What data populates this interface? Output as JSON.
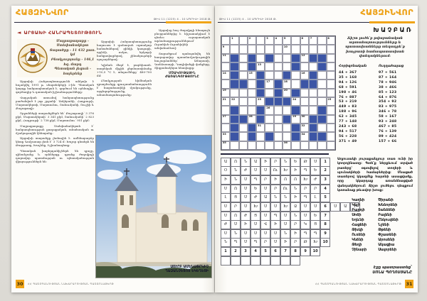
{
  "newspaper": {
    "logo": "ՀԱՅԶԻՆՎՈՐ",
    "issue_line": "ԹԻՎ 11 (1225)  4 - 10 ԱՊՐԻԼԻ 2018 Թ.",
    "footer_text": "ՀՀ ՊԱՇՏՊԱՆՈՒԹՅԱՆ ՆԱԽԱՐԱՐՈՒԹՅԱՆ ՊԱՇՏՈՆԱԹԵՐԹ",
    "page_left_number": "30",
    "page_right_number": "31"
  },
  "colors": {
    "accent_orange": "#f0a417",
    "title_red": "#9e2b25",
    "crossword_blue": "#3c55a5",
    "rule_dark": "#23233a"
  },
  "article": {
    "title": "ԱՐՑԱԽԻ ՀԱՆՐԱՊԵՏՈՒԹՅՈՒՆ",
    "infobox_lines": [
      "Մայրաքաղաքը - Ստեփանակերտ",
      "Տարածքը - 11 432 քառ. կմ",
      "Բնակչությունը - 146,1 հզ. մարդ",
      "Պետական լեզուն - հայերենը"
    ],
    "col1": [
      "Արցախի Հանրապետությունն անկախ է հռչակվել 1991 թ. սեպտեմբերի 2-ին։ Պետական կարգը հանրապետական է, գործում են օրենսդիր, գործադիր և դատական իշխանությունները։",
      "Վարչական առումով հանրապետությունը բաժանված է յոթ շրջանի՝ Ասկերանի, Հադրութի, Մարտակերտի, Մարտունու, Շահումյանի, Շուշիի և Քաշաթաղի։",
      "Շրջանների տարածքներն են՝ Քաշաթաղի՝ 3 376 քկմ, Մարտակերտի՝ 3 341 քկմ, Շահումյանի՝ 2 823 քկմ, Հադրութի՝ 2 738 քկմ, Մարտունու՝ 951 քկմ։",
      "Մայրաքաղաքը Ստեփանակերտն է՝ հանրապետության քաղաքական, տնտեսական ու մշակութային կենտրոնը։",
      "Արցախի տարածքը լեռնային է. ամենաբարձր կետը Գոմշասար լեռն է՝ 3 724 մ։ Խոշոր գետերն են Թարթառը, Խաչենը, Իշխանագետը։",
      "Պետական խորհրդանիշներն են դրոշը, զինանշանը և օրհներգը. դրանք ժողովրդի դարավոր պատմության ու պետականության վկայություններն են։"
    ],
    "col2": [
      "Արցախի Հանրապետությունը հարուստ է զանազան օգտակար հանածոներով՝ ցինկի, կապարի, պղնձի, ոսկու, երկաթի հանքավայրերով, շինանյութերի պաշարներով։",
      "Կլիման մեղմ է, բարեխառն. տարեկան միջին ջերմաստիճանը +10,5 °C է, տեղումները՝ 480-700 մմ։",
      "Բնակչության հիմնական զբաղմունքը գյուղատնտեսությունն է՝ հացահատիկի մշակությունը, այգեգործությունը, անասնապահությունը։"
    ],
    "col3": [
      "Արցախը հայ ժողովրդի հնագույն բնօրրաններից է. հիշատակվում է դեռևս ուրարտական արձանագրություններում՝ Ուրտեխե-Ուրտեխինի անվանաձևով։",
      "Տարածքում պահպանվել են հազարավոր պատմամշակութային հուշարձաններ՝ Ամարասի, Գանձասարի, Դադիվանքի վանքերը, Տիգրանակերտ հնավայրը։"
    ],
    "subhead": "ՄՇԱԿՈՒԹԱՅԻՆ ԺԱՌԱՆԳՈՒԹՅՈՒՆԸ",
    "photo_caption": [
      "ՍՈՒՐԲ ԱՄԵՆԱՓՐԿԻՉ",
      "ՂԱԶԱՆՉԵՑՈՑ ԵԿԵՂԵՑԻ"
    ]
  },
  "puzzle_page": {
    "title": "ԽԱՉԲԱՌ",
    "intro": "Ճիշտ լուծե՛ք թվաբանական արտահայտությունները և պատասխանները տեղադրե՛ք խաչբառի համապատասխան վանդակներում։",
    "clues": {
      "horizontal_label": "Հորիզոնական",
      "vertical_label": "Ուղղահայաց",
      "horizontal": [
        "44 + 367",
        "35 + 168",
        "94 + 126",
        "68 + 591",
        "198 + 46",
        "76 + 887",
        "53 + 219",
        "449 + 83",
        "188 + 96",
        "62 + 345",
        "77 + 148",
        "243 + 68",
        "94 + 517",
        "56 + 228",
        "371 + 49"
      ],
      "vertical": [
        "97 + 561",
        "87 + 164",
        "78 + 946",
        "38 + 466",
        "85 + 123",
        "64 + 876",
        "354 + 92",
        "83 + 975",
        "346 + 78",
        "58 + 167",
        "93 + 248",
        "467 + 85",
        "76 + 139",
        "89 + 424",
        "157 + 66"
      ]
    },
    "crossword": {
      "cols": 13,
      "rows": 13,
      "pattern": [
        ".............",
        ".............",
        ".B.B.B..B.BB.",
        ".B.B....B..B.",
        ".B..B..B..B..",
        ".BB.B.B..BB..",
        "....B.B.B....",
        ".....BBB.....",
        ".B..B...B..B.",
        ".BB.B..B..BB.",
        ".B.B....B.B..",
        ".B.B.B..B.BB.",
        "............."
      ],
      "numbers": {
        "0,1": "1",
        "0,3": "2",
        "0,5": "3",
        "0,6": "4",
        "0,7": "5",
        "0,9": "6",
        "0,10": "7",
        "0,12": "8",
        "1,0": "9",
        "1,7": "10",
        "2,0": "11",
        "2,9": "12",
        "3,4": "13",
        "4,0": "14",
        "4,3": "15",
        "4,9": "16",
        "5,5": "17",
        "5,7": "18",
        "6,0": "19",
        "6,7": "20",
        "7,0": "21",
        "7,1": "22",
        "7,4": "23",
        "7,8": "24",
        "7,12": "25",
        "8,5": "26",
        "9,0": "27",
        "9,3": "28",
        "9,8": "29",
        "9,9": "30",
        "10,4": "31",
        "10,9": "32",
        "11,0": "33",
        "11,9": "34",
        "12,0": "35",
        "12,7": "36"
      }
    },
    "lettergrid": {
      "rows": [
        [
          "Ա",
          "Ո",
          "Ն",
          "Ա",
          "Ի",
          "Ր",
          "Ն",
          "Ե",
          "Թ",
          "Ս"
        ],
        [
          "Օ",
          "Ն",
          "Ժ",
          "Ս",
          "Ս",
          "Ու",
          "Խ",
          "Ի",
          "Պ",
          "Ե"
        ],
        [
          "Ի",
          "Ն",
          "Ս",
          "Պ",
          "Ր",
          "Ի",
          "Ո",
          "Ո",
          "Խ",
          "Ժ"
        ],
        [
          "Ս",
          "Ո",
          "Ս",
          "Ե",
          "Ս",
          "Ր",
          "Ու",
          "Ն",
          "Ր",
          "Ր"
        ],
        [
          "Լ",
          "Ց",
          "Ս",
          "Ժ",
          "Ա",
          "Ն",
          "Ն",
          "Ի",
          "Պ",
          "Լ"
        ],
        [
          "Ս",
          "Ր",
          "Ս",
          "Խ",
          "Ս",
          "Ս",
          "Խ",
          "Ձ",
          "Ս",
          "Ս"
        ],
        [
          "Ս",
          "Ո",
          "Ժ",
          "Ց",
          "Ս",
          "Պ",
          "Ս",
          "Ն",
          "Ս",
          "Ե"
        ],
        [
          "Ժ",
          "Ս",
          "Ի",
          "Ս",
          "Վ",
          "Ի",
          "Ս",
          "Ր",
          "Կ",
          "Ց"
        ],
        [
          "Ս",
          "Ն",
          "Ս",
          "Ս",
          "Ս",
          "Ս",
          "Ն",
          "Ի",
          "Պ",
          "Պ"
        ],
        [
          "Ն",
          "Պ",
          "Ս",
          "Պ",
          "Ր",
          "Ս",
          "Ի",
          "Ր",
          "Թ",
          "Խ"
        ]
      ],
      "row_labels": [
        "1",
        "2",
        "3",
        "4",
        "5",
        "6",
        "7",
        "8",
        "9",
        "10"
      ],
      "col_labels": [
        "1",
        "2",
        "3",
        "4",
        "5",
        "6",
        "7",
        "8",
        "9",
        "10"
      ],
      "extra_row_index": 5,
      "extra_cells": [
        "Ս",
        "Ա",
        "Ի"
      ],
      "answer_cells": 8
    },
    "wordsearch_intro": "Աղյուսակի յուրաքանչյուր տառ ունի իր կոորդինատը։ Գտե՛ք ներքևում տրված բառերը՝ օգտվելով տողերի և սյունակների համարներից։ Մնացած տառերով կկազմեք հայտնի ասացվածք, որը կկարդաք առանձնացված վանդակներում։ Ճիշտ լուծելու դեպքում կստանաք թևավոր խոսք։",
    "words_col1": [
      "Կաղնի",
      "Կեչի",
      "Բարդի",
      "Սոճի",
      "Եղևնի",
      "Հացենի",
      "Թխկի",
      "Ուռենի",
      "Կնձնի",
      "Թեղի",
      "Չինարի"
    ],
    "words_col2": [
      "Ծիրանի",
      "Խնձորենի",
      "Տանձենի",
      "Բալենի",
      "Ընկուզենի",
      "Նշենի",
      "Թթենի",
      "Փշատենի",
      "Արոսենի",
      "Ակացիա",
      "Սալորենի"
    ],
    "byline": [
      "Էջը պատրաստեց՝",
      "ՍՈՆԱ ՊՈՂՈՍՅԱՆԸ"
    ]
  }
}
